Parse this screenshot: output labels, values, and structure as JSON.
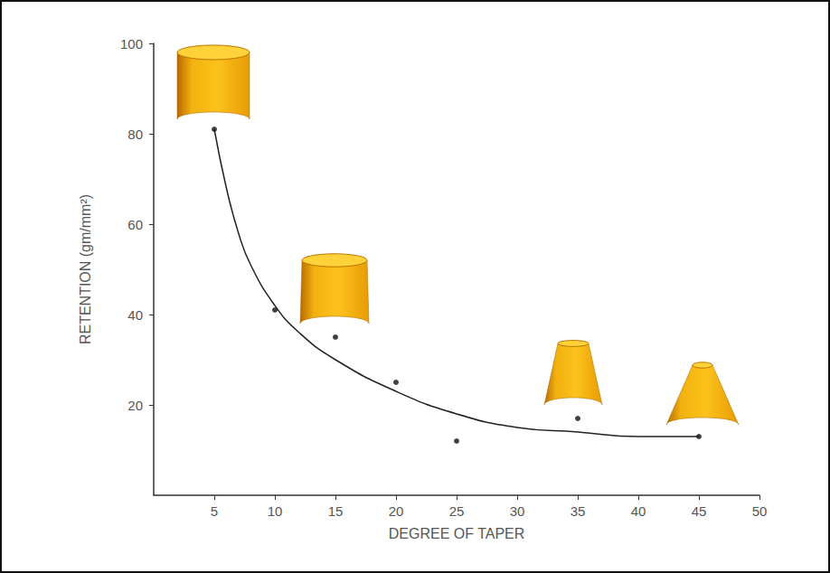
{
  "chart_data": {
    "type": "scatter",
    "x_label": "DEGREE OF TAPER",
    "y_label": "RETENTION (gm/mm²)",
    "xlim": [
      0,
      50
    ],
    "xticks": [
      5,
      10,
      15,
      20,
      25,
      30,
      35,
      40,
      45,
      50
    ],
    "ylim": [
      0,
      100
    ],
    "yticks": [
      20,
      40,
      60,
      80,
      100
    ],
    "grid": false,
    "series": [
      {
        "type": "scatter",
        "marker": "circle",
        "color": "#111111",
        "x": [
          5,
          10,
          15,
          20,
          25,
          35,
          45
        ],
        "values": [
          81,
          41,
          35,
          25,
          12,
          17,
          13
        ]
      },
      {
        "type": "line",
        "line_style": "solid",
        "color": "#222222",
        "x": [
          5,
          6,
          7,
          8,
          10,
          12,
          15,
          20,
          25,
          30,
          35,
          40,
          45
        ],
        "values": [
          81,
          68,
          58,
          51,
          42,
          36,
          30,
          23,
          18,
          15,
          14,
          13,
          13
        ]
      }
    ]
  }
}
